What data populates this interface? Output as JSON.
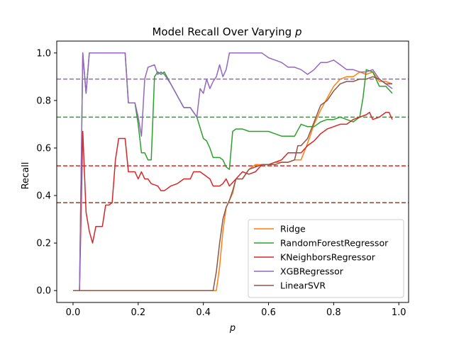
{
  "chart_data": {
    "type": "line",
    "title": "Model Recall Over Varying",
    "title_var": "p",
    "xlabel": "p",
    "ylabel": "Recall",
    "xlim": [
      -0.05,
      1.03
    ],
    "ylim": [
      -0.05,
      1.05
    ],
    "xticks": [
      "0.0",
      "0.2",
      "0.4",
      "0.6",
      "0.8",
      "1.0"
    ],
    "yticks": [
      "0.0",
      "0.2",
      "0.4",
      "0.6",
      "0.8",
      "1.0"
    ],
    "legend_position": "lower right",
    "grid": false,
    "series": [
      {
        "name": "Ridge",
        "color": "#ff7f0e",
        "mean": 0.37,
        "points": [
          [
            0.0,
            0.0
          ],
          [
            0.05,
            0.0
          ],
          [
            0.1,
            0.0
          ],
          [
            0.15,
            0.0
          ],
          [
            0.2,
            0.0
          ],
          [
            0.25,
            0.0
          ],
          [
            0.3,
            0.0
          ],
          [
            0.35,
            0.0
          ],
          [
            0.4,
            0.0
          ],
          [
            0.44,
            0.0
          ],
          [
            0.45,
            0.1
          ],
          [
            0.46,
            0.25
          ],
          [
            0.47,
            0.35
          ],
          [
            0.48,
            0.38
          ],
          [
            0.49,
            0.41
          ],
          [
            0.5,
            0.47
          ],
          [
            0.52,
            0.47
          ],
          [
            0.54,
            0.51
          ],
          [
            0.56,
            0.53
          ],
          [
            0.58,
            0.53
          ],
          [
            0.6,
            0.53
          ],
          [
            0.62,
            0.54
          ],
          [
            0.64,
            0.54
          ],
          [
            0.66,
            0.54
          ],
          [
            0.68,
            0.55
          ],
          [
            0.7,
            0.55
          ],
          [
            0.72,
            0.62
          ],
          [
            0.74,
            0.7
          ],
          [
            0.76,
            0.76
          ],
          [
            0.78,
            0.81
          ],
          [
            0.8,
            0.86
          ],
          [
            0.82,
            0.89
          ],
          [
            0.84,
            0.9
          ],
          [
            0.86,
            0.9
          ],
          [
            0.88,
            0.92
          ],
          [
            0.9,
            0.91
          ],
          [
            0.92,
            0.92
          ],
          [
            0.94,
            0.88
          ],
          [
            0.96,
            0.88
          ],
          [
            0.98,
            0.87
          ]
        ]
      },
      {
        "name": "RandomForestRegressor",
        "color": "#2ca02c",
        "mean": 0.73,
        "points": [
          [
            0.0,
            0.0
          ],
          [
            0.02,
            0.0
          ],
          [
            0.03,
            1.0
          ],
          [
            0.04,
            0.83
          ],
          [
            0.05,
            1.0
          ],
          [
            0.1,
            1.0
          ],
          [
            0.16,
            1.0
          ],
          [
            0.17,
            0.79
          ],
          [
            0.19,
            0.79
          ],
          [
            0.2,
            0.7
          ],
          [
            0.21,
            0.58
          ],
          [
            0.22,
            0.58
          ],
          [
            0.23,
            0.55
          ],
          [
            0.24,
            0.55
          ],
          [
            0.25,
            0.9
          ],
          [
            0.26,
            0.92
          ],
          [
            0.27,
            0.91
          ],
          [
            0.28,
            0.92
          ],
          [
            0.3,
            0.87
          ],
          [
            0.32,
            0.82
          ],
          [
            0.34,
            0.77
          ],
          [
            0.36,
            0.77
          ],
          [
            0.38,
            0.73
          ],
          [
            0.4,
            0.64
          ],
          [
            0.41,
            0.63
          ],
          [
            0.42,
            0.6
          ],
          [
            0.43,
            0.56
          ],
          [
            0.45,
            0.56
          ],
          [
            0.46,
            0.55
          ],
          [
            0.47,
            0.52
          ],
          [
            0.48,
            0.51
          ],
          [
            0.49,
            0.67
          ],
          [
            0.5,
            0.68
          ],
          [
            0.52,
            0.68
          ],
          [
            0.54,
            0.67
          ],
          [
            0.56,
            0.67
          ],
          [
            0.58,
            0.67
          ],
          [
            0.6,
            0.67
          ],
          [
            0.62,
            0.66
          ],
          [
            0.64,
            0.65
          ],
          [
            0.66,
            0.65
          ],
          [
            0.68,
            0.65
          ],
          [
            0.7,
            0.7
          ],
          [
            0.72,
            0.69
          ],
          [
            0.74,
            0.69
          ],
          [
            0.76,
            0.71
          ],
          [
            0.78,
            0.72
          ],
          [
            0.8,
            0.72
          ],
          [
            0.82,
            0.73
          ],
          [
            0.84,
            0.72
          ],
          [
            0.86,
            0.71
          ],
          [
            0.88,
            0.73
          ],
          [
            0.89,
            0.81
          ],
          [
            0.9,
            0.93
          ],
          [
            0.92,
            0.92
          ],
          [
            0.94,
            0.86
          ],
          [
            0.96,
            0.86
          ],
          [
            0.98,
            0.83
          ]
        ]
      },
      {
        "name": "KNeighborsRegressor",
        "color": "#d62728",
        "mean": 0.525,
        "points": [
          [
            0.0,
            0.0
          ],
          [
            0.02,
            0.0
          ],
          [
            0.03,
            0.67
          ],
          [
            0.04,
            0.33
          ],
          [
            0.05,
            0.25
          ],
          [
            0.06,
            0.2
          ],
          [
            0.07,
            0.27
          ],
          [
            0.09,
            0.27
          ],
          [
            0.1,
            0.36
          ],
          [
            0.11,
            0.36
          ],
          [
            0.12,
            0.37
          ],
          [
            0.13,
            0.55
          ],
          [
            0.14,
            0.64
          ],
          [
            0.16,
            0.64
          ],
          [
            0.17,
            0.5
          ],
          [
            0.19,
            0.5
          ],
          [
            0.2,
            0.47
          ],
          [
            0.21,
            0.5
          ],
          [
            0.22,
            0.47
          ],
          [
            0.23,
            0.47
          ],
          [
            0.24,
            0.45
          ],
          [
            0.26,
            0.44
          ],
          [
            0.27,
            0.42
          ],
          [
            0.28,
            0.42
          ],
          [
            0.3,
            0.44
          ],
          [
            0.32,
            0.45
          ],
          [
            0.34,
            0.47
          ],
          [
            0.36,
            0.47
          ],
          [
            0.37,
            0.5
          ],
          [
            0.39,
            0.5
          ],
          [
            0.4,
            0.49
          ],
          [
            0.42,
            0.47
          ],
          [
            0.43,
            0.44
          ],
          [
            0.45,
            0.44
          ],
          [
            0.46,
            0.45
          ],
          [
            0.47,
            0.47
          ],
          [
            0.48,
            0.44
          ],
          [
            0.5,
            0.47
          ],
          [
            0.52,
            0.5
          ],
          [
            0.54,
            0.49
          ],
          [
            0.56,
            0.5
          ],
          [
            0.58,
            0.53
          ],
          [
            0.6,
            0.53
          ],
          [
            0.62,
            0.54
          ],
          [
            0.64,
            0.55
          ],
          [
            0.66,
            0.58
          ],
          [
            0.68,
            0.58
          ],
          [
            0.7,
            0.58
          ],
          [
            0.72,
            0.61
          ],
          [
            0.74,
            0.63
          ],
          [
            0.76,
            0.66
          ],
          [
            0.78,
            0.68
          ],
          [
            0.8,
            0.69
          ],
          [
            0.82,
            0.7
          ],
          [
            0.84,
            0.7
          ],
          [
            0.86,
            0.72
          ],
          [
            0.88,
            0.73
          ],
          [
            0.9,
            0.74
          ],
          [
            0.91,
            0.75
          ],
          [
            0.92,
            0.72
          ],
          [
            0.94,
            0.73
          ],
          [
            0.96,
            0.75
          ],
          [
            0.97,
            0.75
          ],
          [
            0.98,
            0.72
          ]
        ]
      },
      {
        "name": "XGBRegressor",
        "color": "#9467bd",
        "mean": 0.89,
        "points": [
          [
            0.0,
            0.0
          ],
          [
            0.02,
            0.0
          ],
          [
            0.03,
            1.0
          ],
          [
            0.04,
            0.83
          ],
          [
            0.05,
            1.0
          ],
          [
            0.1,
            1.0
          ],
          [
            0.16,
            1.0
          ],
          [
            0.17,
            0.79
          ],
          [
            0.19,
            0.79
          ],
          [
            0.2,
            0.73
          ],
          [
            0.21,
            0.65
          ],
          [
            0.22,
            0.89
          ],
          [
            0.23,
            0.94
          ],
          [
            0.25,
            0.95
          ],
          [
            0.26,
            0.91
          ],
          [
            0.27,
            0.92
          ],
          [
            0.28,
            0.91
          ],
          [
            0.3,
            0.87
          ],
          [
            0.32,
            0.82
          ],
          [
            0.34,
            0.77
          ],
          [
            0.36,
            0.77
          ],
          [
            0.38,
            0.73
          ],
          [
            0.39,
            0.85
          ],
          [
            0.4,
            0.83
          ],
          [
            0.41,
            0.89
          ],
          [
            0.42,
            0.85
          ],
          [
            0.43,
            0.88
          ],
          [
            0.44,
            0.9
          ],
          [
            0.45,
            0.95
          ],
          [
            0.46,
            0.9
          ],
          [
            0.47,
            0.93
          ],
          [
            0.48,
            1.0
          ],
          [
            0.5,
            1.0
          ],
          [
            0.55,
            1.0
          ],
          [
            0.58,
            1.0
          ],
          [
            0.6,
            0.98
          ],
          [
            0.62,
            0.97
          ],
          [
            0.64,
            0.96
          ],
          [
            0.66,
            0.94
          ],
          [
            0.68,
            0.94
          ],
          [
            0.7,
            0.93
          ],
          [
            0.72,
            0.91
          ],
          [
            0.74,
            0.93
          ],
          [
            0.76,
            0.96
          ],
          [
            0.78,
            0.96
          ],
          [
            0.8,
            0.97
          ],
          [
            0.82,
            0.95
          ],
          [
            0.84,
            0.93
          ],
          [
            0.86,
            0.93
          ],
          [
            0.88,
            0.92
          ],
          [
            0.9,
            0.92
          ],
          [
            0.92,
            0.93
          ],
          [
            0.94,
            0.89
          ],
          [
            0.96,
            0.87
          ],
          [
            0.98,
            0.85
          ]
        ]
      },
      {
        "name": "LinearSVR",
        "color": "#8c564b",
        "mean": 0.37,
        "points": [
          [
            0.0,
            0.0
          ],
          [
            0.05,
            0.0
          ],
          [
            0.1,
            0.0
          ],
          [
            0.15,
            0.0
          ],
          [
            0.2,
            0.0
          ],
          [
            0.25,
            0.0
          ],
          [
            0.3,
            0.0
          ],
          [
            0.35,
            0.0
          ],
          [
            0.4,
            0.0
          ],
          [
            0.43,
            0.0
          ],
          [
            0.44,
            0.08
          ],
          [
            0.45,
            0.2
          ],
          [
            0.46,
            0.3
          ],
          [
            0.47,
            0.35
          ],
          [
            0.48,
            0.38
          ],
          [
            0.49,
            0.42
          ],
          [
            0.5,
            0.47
          ],
          [
            0.52,
            0.47
          ],
          [
            0.54,
            0.51
          ],
          [
            0.56,
            0.52
          ],
          [
            0.58,
            0.53
          ],
          [
            0.6,
            0.53
          ],
          [
            0.62,
            0.53
          ],
          [
            0.64,
            0.54
          ],
          [
            0.66,
            0.54
          ],
          [
            0.68,
            0.55
          ],
          [
            0.69,
            0.61
          ],
          [
            0.7,
            0.61
          ],
          [
            0.72,
            0.64
          ],
          [
            0.74,
            0.71
          ],
          [
            0.76,
            0.78
          ],
          [
            0.78,
            0.8
          ],
          [
            0.8,
            0.84
          ],
          [
            0.82,
            0.87
          ],
          [
            0.84,
            0.88
          ],
          [
            0.86,
            0.88
          ],
          [
            0.88,
            0.89
          ],
          [
            0.9,
            0.89
          ],
          [
            0.92,
            0.9
          ],
          [
            0.94,
            0.89
          ],
          [
            0.96,
            0.87
          ],
          [
            0.98,
            0.87
          ]
        ]
      }
    ]
  }
}
